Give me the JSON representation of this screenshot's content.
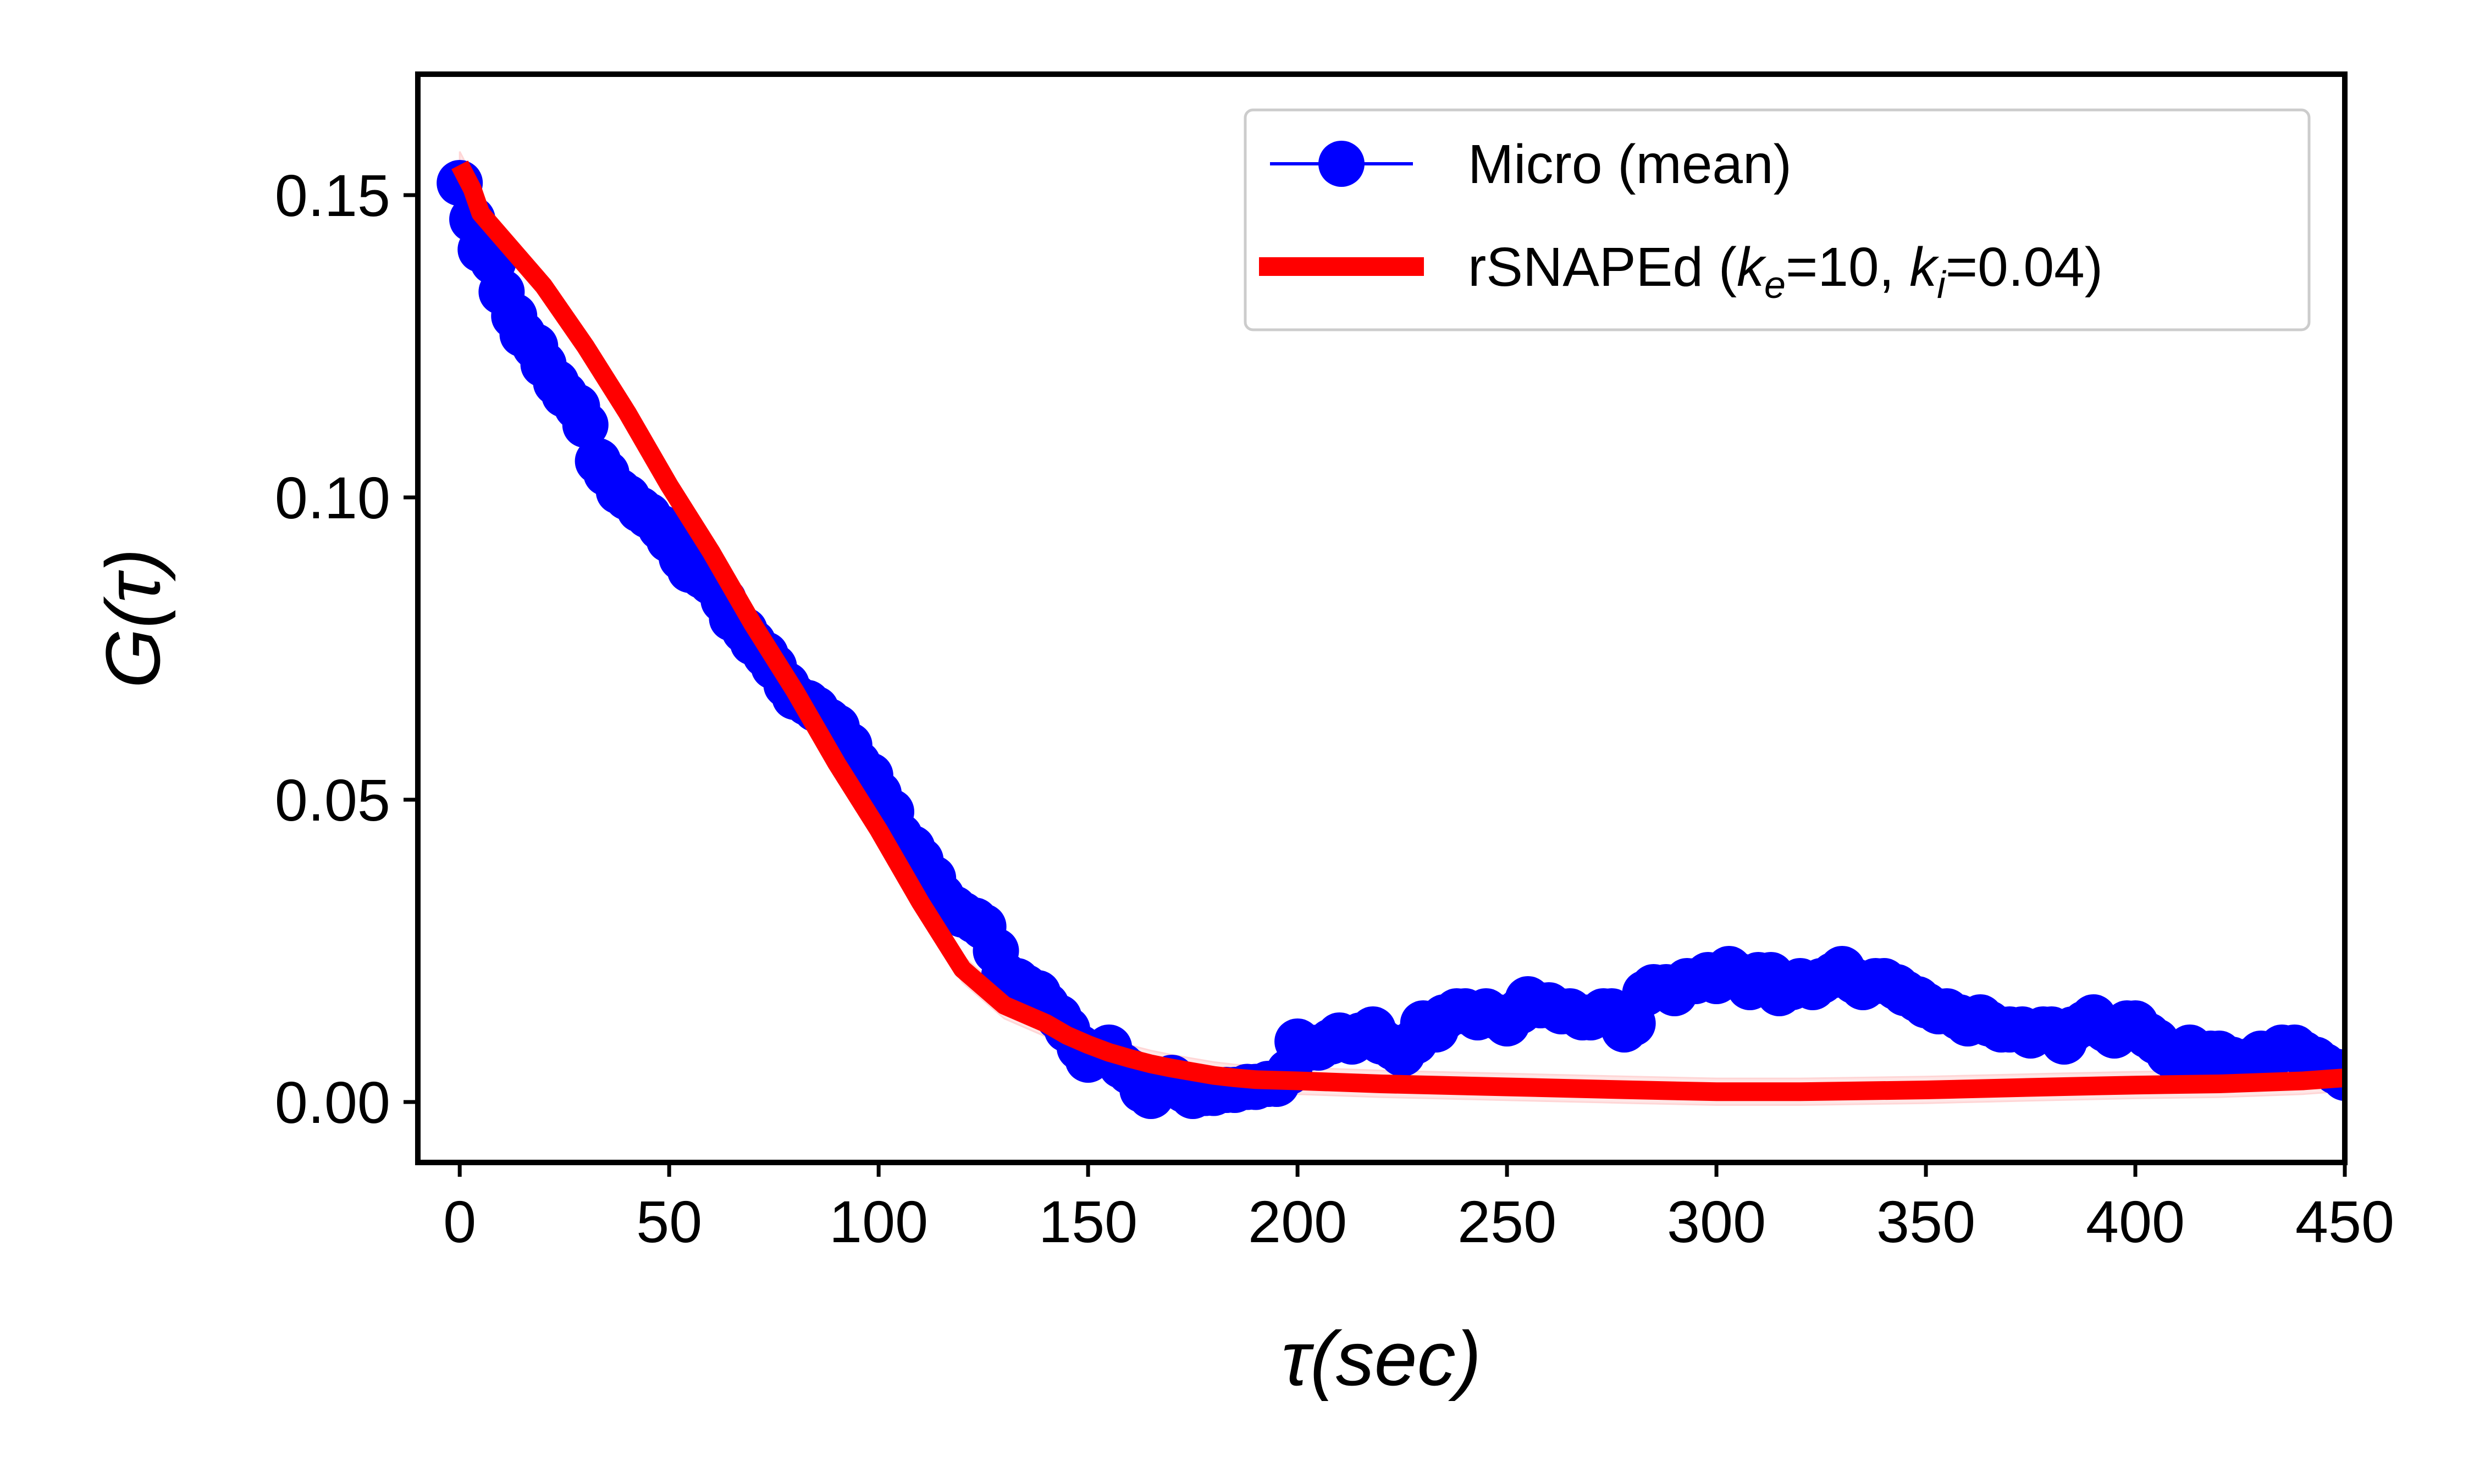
{
  "chart_data": {
    "type": "line",
    "xlabel": "τ(sec)",
    "ylabel": "G(τ)",
    "xlim": [
      -10,
      450
    ],
    "ylim": [
      -0.01,
      0.17
    ],
    "xticks": [
      "0",
      "50",
      "100",
      "150",
      "200",
      "250",
      "300",
      "350",
      "400",
      "450"
    ],
    "yticks": [
      "0.00",
      "0.05",
      "0.10",
      "0.15"
    ],
    "xtick_values": [
      0,
      50,
      100,
      150,
      200,
      250,
      300,
      350,
      400,
      450
    ],
    "ytick_values": [
      0,
      0.05,
      0.1,
      0.15
    ],
    "legend_position": "top-right",
    "grid": false,
    "series": [
      {
        "name": "Micro (mean)",
        "style": "line-with-markers",
        "color": "#0000ff",
        "band_color": "#c8c8ff",
        "x": [
          0,
          3,
          5,
          8,
          10,
          13,
          15,
          18,
          20,
          23,
          25,
          28,
          30,
          33,
          35,
          38,
          40,
          43,
          45,
          48,
          50,
          53,
          55,
          58,
          60,
          63,
          65,
          68,
          70,
          73,
          75,
          78,
          80,
          83,
          85,
          88,
          90,
          93,
          95,
          98,
          100,
          103,
          105,
          108,
          110,
          113,
          115,
          118,
          120,
          123,
          125,
          128,
          130,
          133,
          135,
          138,
          140,
          143,
          145,
          148,
          150,
          153,
          155,
          158,
          160,
          163,
          165,
          168,
          170,
          173,
          175,
          178,
          180,
          183,
          185,
          188,
          190,
          193,
          195,
          198,
          200,
          203,
          205,
          208,
          210,
          213,
          215,
          218,
          220,
          223,
          225,
          228,
          230,
          233,
          235,
          238,
          240,
          243,
          245,
          248,
          250,
          253,
          255,
          258,
          260,
          263,
          265,
          268,
          270,
          273,
          275,
          278,
          280,
          283,
          285,
          288,
          290,
          293,
          295,
          298,
          300,
          303,
          305,
          308,
          310,
          313,
          315,
          318,
          320,
          323,
          325,
          328,
          330,
          333,
          335,
          338,
          340,
          343,
          345,
          348,
          350,
          353,
          355,
          358,
          360,
          363,
          365,
          368,
          370,
          373,
          375,
          378,
          380,
          383,
          385,
          388,
          390,
          393,
          395,
          398,
          400,
          403,
          405,
          408,
          410,
          413,
          415,
          418,
          420,
          423,
          425,
          428,
          430,
          433,
          435,
          438,
          440,
          443,
          445,
          448,
          450
        ],
        "y": [
          0.152,
          0.146,
          0.141,
          0.139,
          0.134,
          0.13,
          0.127,
          0.125,
          0.122,
          0.119,
          0.117,
          0.115,
          0.112,
          0.106,
          0.104,
          0.101,
          0.1,
          0.098,
          0.097,
          0.095,
          0.093,
          0.09,
          0.088,
          0.087,
          0.086,
          0.083,
          0.08,
          0.078,
          0.076,
          0.074,
          0.072,
          0.069,
          0.067,
          0.066,
          0.065,
          0.063,
          0.062,
          0.059,
          0.056,
          0.054,
          0.051,
          0.048,
          0.044,
          0.042,
          0.04,
          0.037,
          0.034,
          0.032,
          0.031,
          0.03,
          0.029,
          0.025,
          0.021,
          0.02,
          0.019,
          0.018,
          0.016,
          0.014,
          0.012,
          0.009,
          0.007,
          0.008,
          0.009,
          0.006,
          0.005,
          0.002,
          0.001,
          0.003,
          0.004,
          0.002,
          0.001,
          0.0015,
          0.0015,
          0.002,
          0.002,
          0.0025,
          0.0025,
          0.003,
          0.003,
          0.005,
          0.01,
          0.009,
          0.009,
          0.01,
          0.011,
          0.01,
          0.011,
          0.012,
          0.01,
          0.009,
          0.008,
          0.01,
          0.013,
          0.012,
          0.014,
          0.015,
          0.015,
          0.014,
          0.015,
          0.014,
          0.013,
          0.015,
          0.017,
          0.016,
          0.016,
          0.015,
          0.015,
          0.014,
          0.014,
          0.015,
          0.015,
          0.012,
          0.013,
          0.018,
          0.019,
          0.019,
          0.018,
          0.02,
          0.02,
          0.021,
          0.02,
          0.022,
          0.021,
          0.019,
          0.021,
          0.021,
          0.018,
          0.019,
          0.02,
          0.019,
          0.02,
          0.021,
          0.022,
          0.02,
          0.019,
          0.02,
          0.02,
          0.019,
          0.018,
          0.017,
          0.016,
          0.015,
          0.015,
          0.014,
          0.013,
          0.014,
          0.013,
          0.012,
          0.012,
          0.012,
          0.011,
          0.012,
          0.012,
          0.01,
          0.012,
          0.013,
          0.014,
          0.012,
          0.011,
          0.013,
          0.013,
          0.011,
          0.01,
          0.008,
          0.007,
          0.009,
          0.008,
          0.008,
          0.008,
          0.007,
          0.006,
          0.007,
          0.008,
          0.008,
          0.009,
          0.009,
          0.008,
          0.007,
          0.006,
          0.005,
          0.004
        ]
      },
      {
        "name": "rSNAPEd (k_e=10, k_i=0.04)",
        "style": "thick-line",
        "color": "#ff0000",
        "band_color": "#ffd6d6",
        "x": [
          0,
          3,
          5,
          10,
          15,
          20,
          25,
          30,
          40,
          50,
          60,
          70,
          80,
          90,
          100,
          110,
          120,
          130,
          140,
          145,
          150,
          155,
          160,
          165,
          170,
          175,
          180,
          185,
          190,
          200,
          220,
          250,
          280,
          300,
          320,
          350,
          380,
          400,
          420,
          440,
          450
        ],
        "y": [
          0.155,
          0.151,
          0.147,
          0.143,
          0.139,
          0.135,
          0.13,
          0.125,
          0.114,
          0.102,
          0.091,
          0.079,
          0.068,
          0.056,
          0.045,
          0.033,
          0.022,
          0.016,
          0.013,
          0.011,
          0.0095,
          0.0082,
          0.0072,
          0.0063,
          0.0056,
          0.005,
          0.0044,
          0.004,
          0.0037,
          0.0035,
          0.003,
          0.0025,
          0.002,
          0.0017,
          0.0017,
          0.002,
          0.0025,
          0.0028,
          0.003,
          0.0035,
          0.004
        ]
      }
    ],
    "legend": [
      {
        "label_html": "Micro (mean)",
        "marker": "circle-line",
        "color": "#0000ff"
      },
      {
        "label_parts": [
          "rSNAPEd (",
          "k",
          "e",
          "=10, ",
          "k",
          "i",
          "=0.04)"
        ],
        "marker": "thick-line",
        "color": "#ff0000"
      }
    ]
  }
}
